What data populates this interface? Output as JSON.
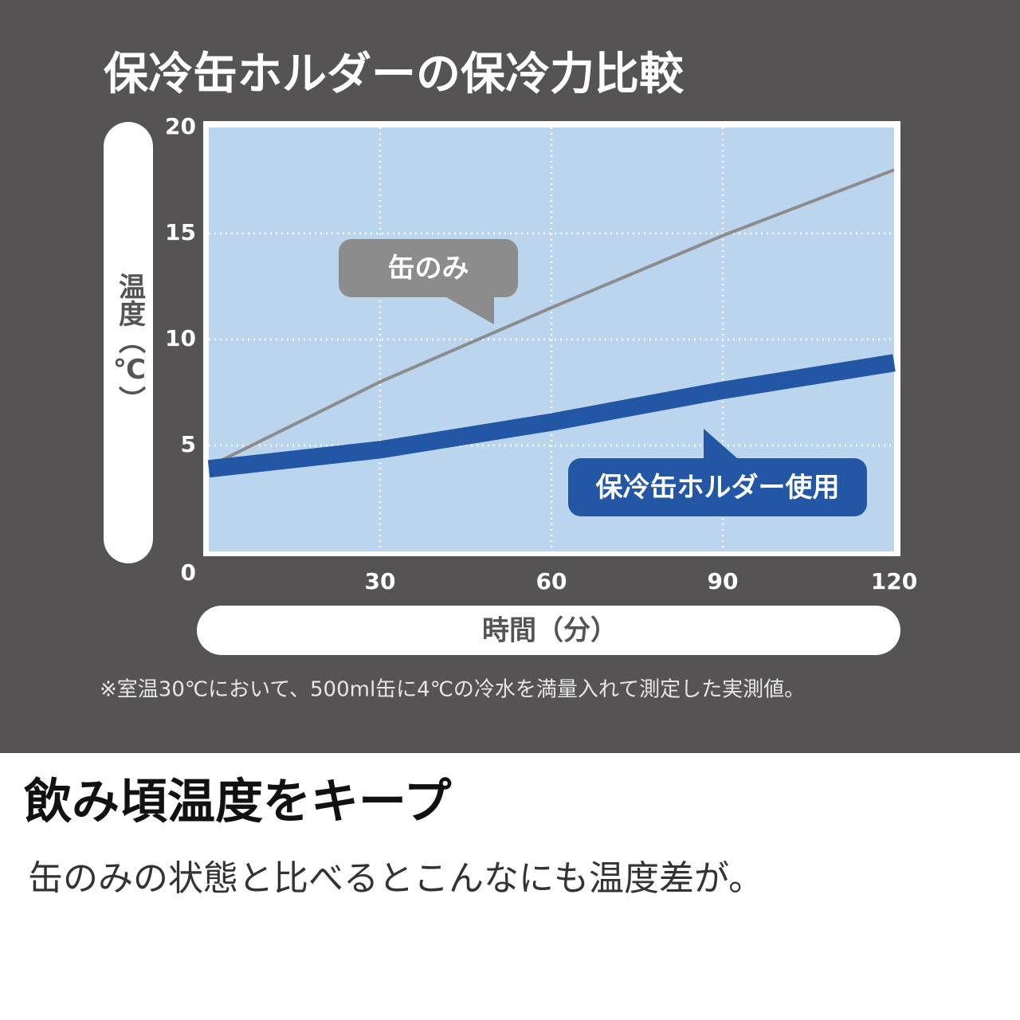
{
  "chart_data": {
    "type": "line",
    "title": "保冷缶ホルダーの保冷力比較",
    "x_label": "時間（分）",
    "y_label": "温度（℃）",
    "note": "※室温30℃において、500ml缶に4℃の冷水を満量入れて測定した実測値。",
    "x": [
      0,
      30,
      60,
      90,
      120
    ],
    "series": [
      {
        "name": "缶のみ",
        "color": "#8c8c8c",
        "values": [
          4.0,
          8.0,
          11.5,
          14.9,
          18.0
        ]
      },
      {
        "name": "保冷缶ホルダー使用",
        "color": "#2456a6",
        "values": [
          3.9,
          4.8,
          6.1,
          7.6,
          8.9
        ]
      }
    ],
    "xlim": [
      0,
      120
    ],
    "ylim": [
      0,
      20
    ],
    "xticks": [
      30,
      60,
      90,
      120
    ],
    "yticks": [
      0,
      5,
      10,
      15,
      20
    ],
    "grid": true
  },
  "headline": "飲み頃温度をキープ",
  "caption": "缶のみの状態と比べるとこんなにも温度差が。"
}
